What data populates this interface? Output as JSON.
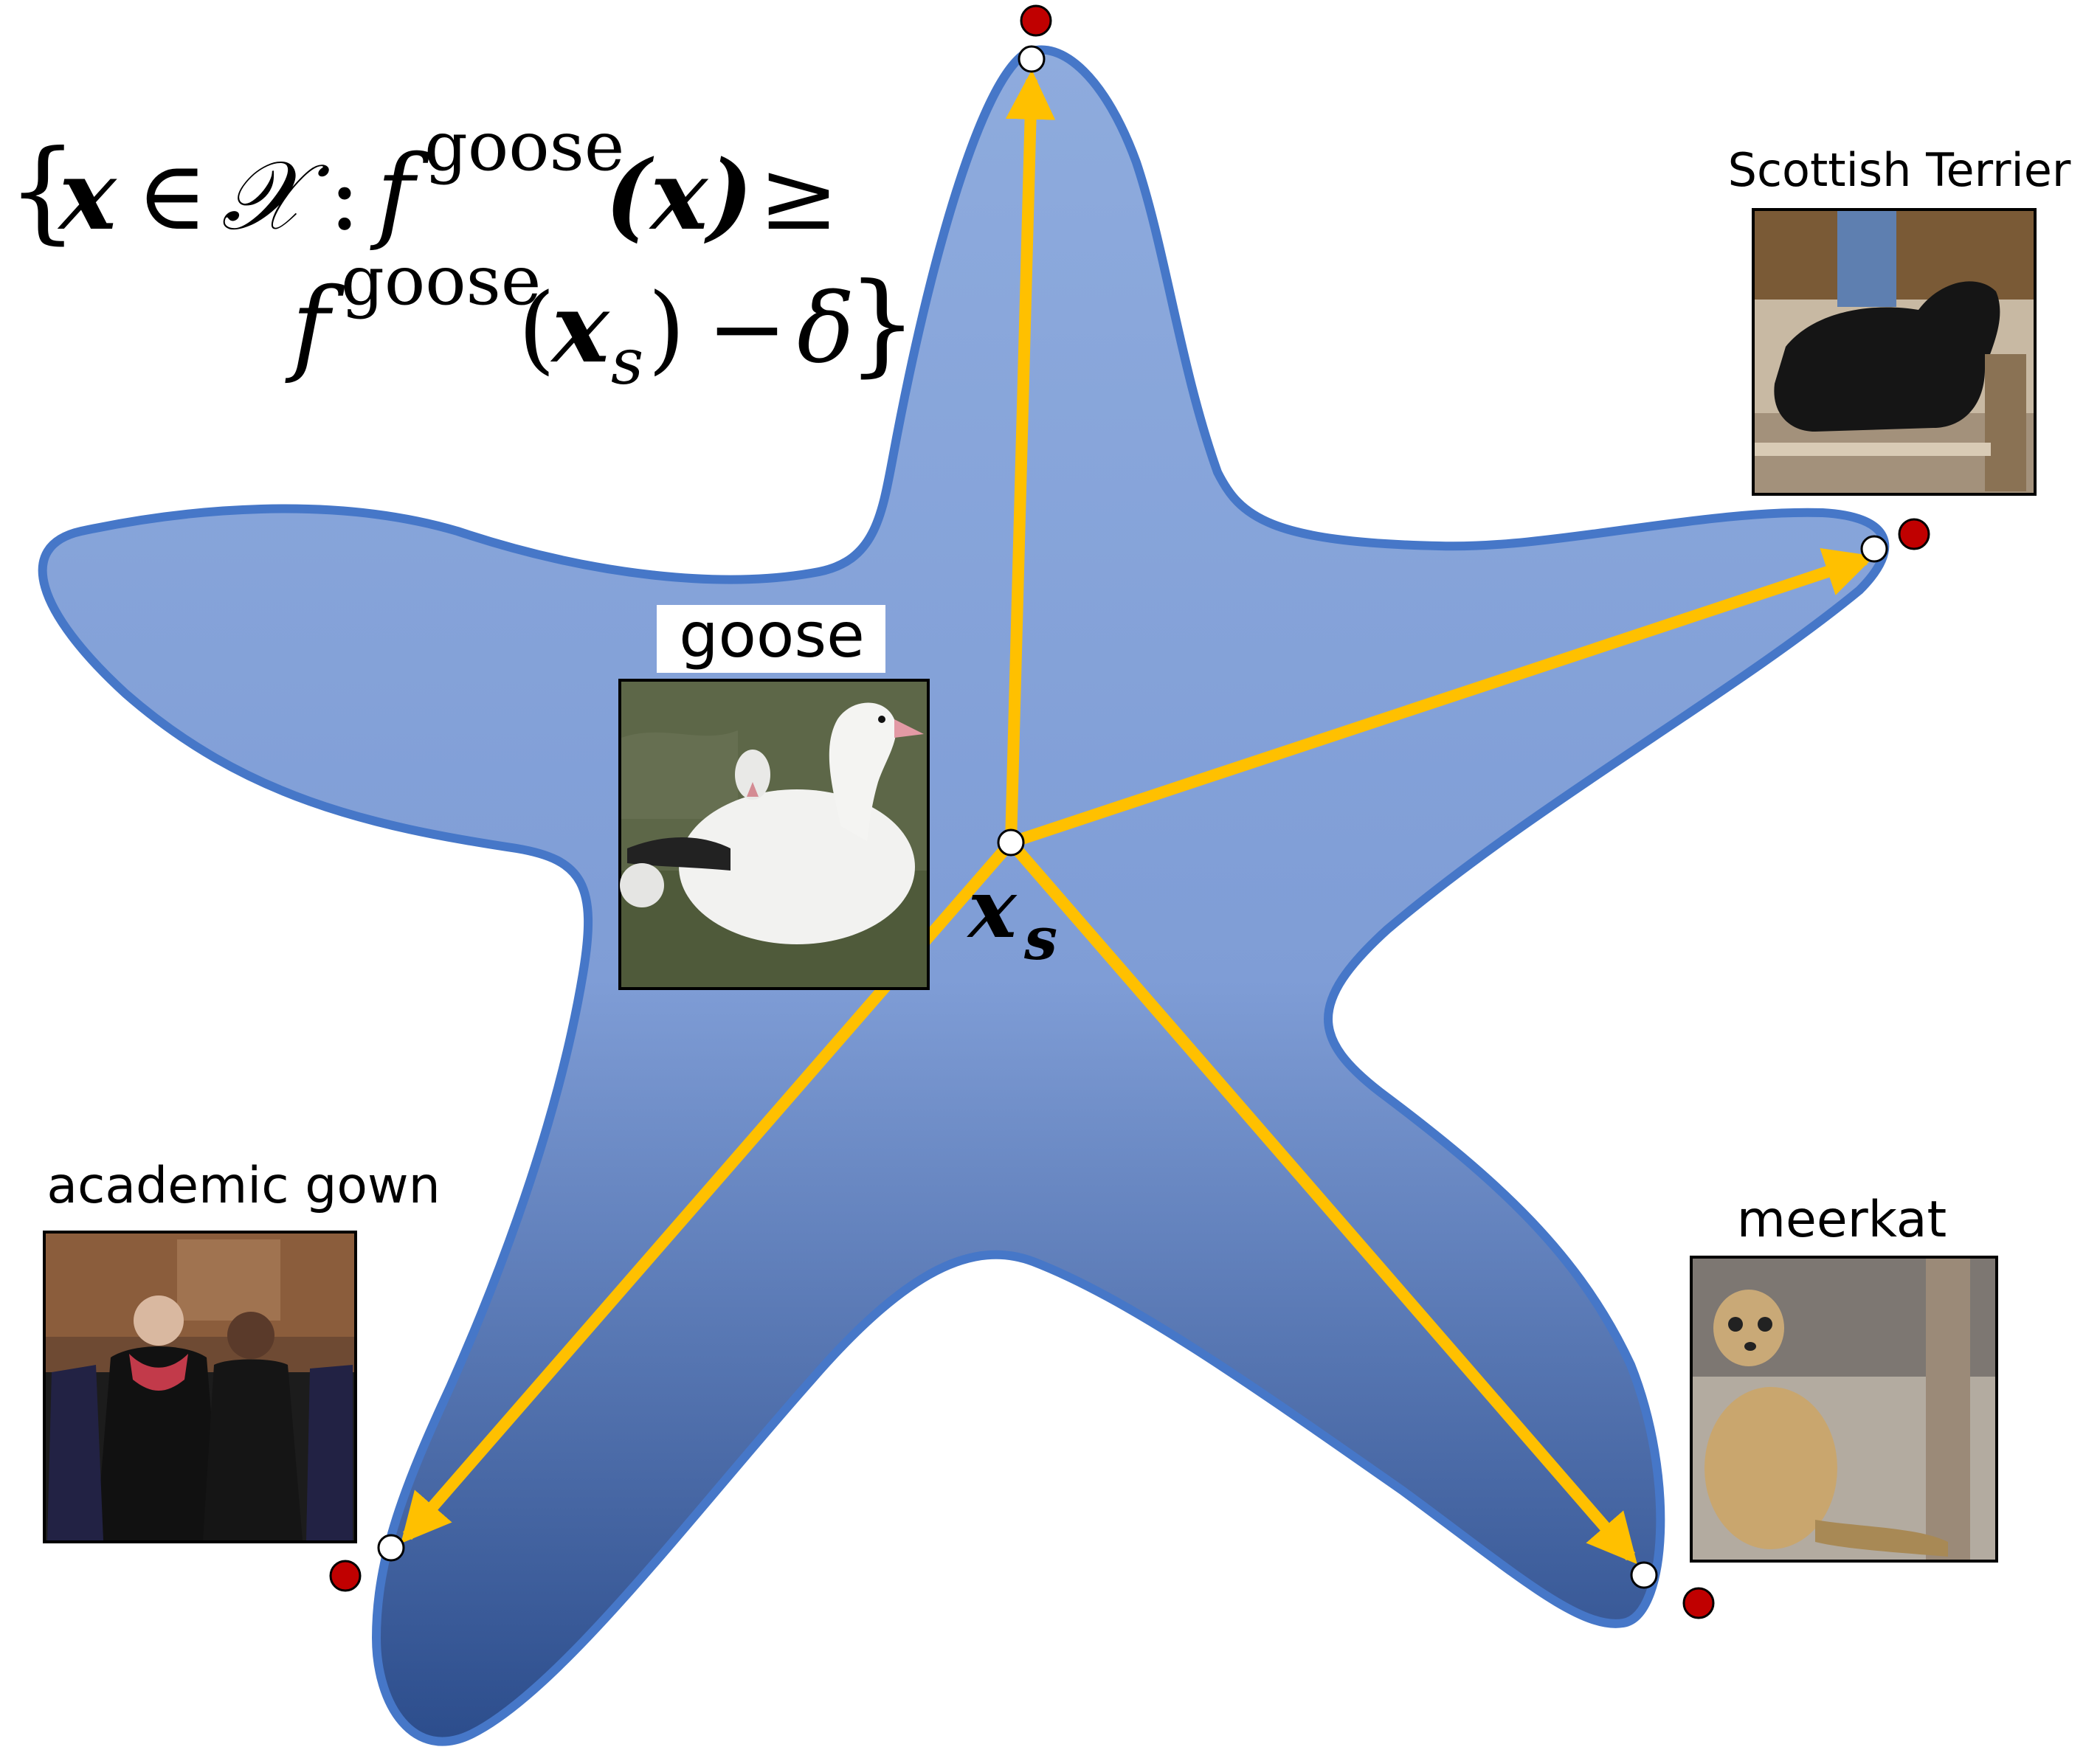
{
  "formula": {
    "line1": {
      "open_brace": "{",
      "x": "x",
      "in": "∈",
      "space": "𝒳",
      "colon": ":",
      "f": "f",
      "sup": "goose",
      "arg": "(x)",
      "geq": "≥"
    },
    "line2": {
      "f": "f",
      "sup": "goose",
      "arg_open": "(",
      "x": "x",
      "sub": "s",
      "arg_close": ")",
      "minus": "−",
      "delta": "δ",
      "close_brace": "}"
    }
  },
  "center": {
    "label_main": "x",
    "label_sub": "s"
  },
  "classes": {
    "goose": "goose",
    "scottish_terrier": "Scottish Terrier",
    "academic_gown": "academic gown",
    "meerkat": "meerkat"
  },
  "colors": {
    "star_fill_top": "#8aa8dc",
    "star_fill_bottom": "#2f5190",
    "star_stroke": "#4677c8",
    "arrow": "#ffc000",
    "boundary_point": "#c00000",
    "inner_point": "#ffffff"
  }
}
